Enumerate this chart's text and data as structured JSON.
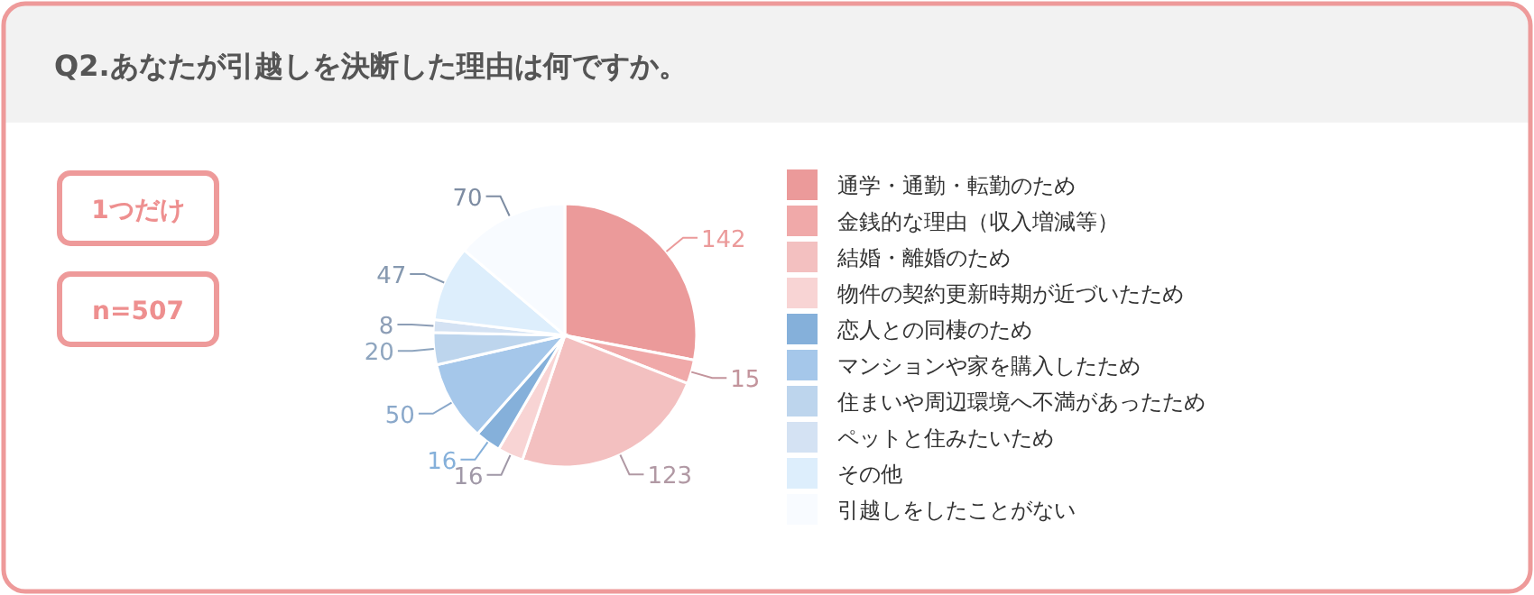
{
  "chart_data": {
    "type": "pie",
    "title": "Q2.あなたが引越しを決断した理由は何ですか。",
    "annotations": [
      "1つだけ",
      "n=507"
    ],
    "categories": [
      "通学・通勤・転勤のため",
      "金銭的な理由（収入増減等）",
      "結婚・離婚のため",
      "物件の契約更新時期が近づいたため",
      "恋人との同棲のため",
      "マンションや家を購入したため",
      "住まいや周辺環境へ不満があったため",
      "ペットと住みたいため",
      "その他",
      "引越しをしたことがない"
    ],
    "values": [
      142,
      15,
      123,
      16,
      16,
      50,
      20,
      8,
      47,
      70
    ],
    "colors": [
      "#eb9a9a",
      "#f0a9a9",
      "#f3c0c0",
      "#f8d4d4",
      "#85b0da",
      "#a5c7ea",
      "#bdd5ed",
      "#d4e2f3",
      "#ddeefc",
      "#f8fbff"
    ],
    "data_labels": true,
    "legend": "right"
  }
}
